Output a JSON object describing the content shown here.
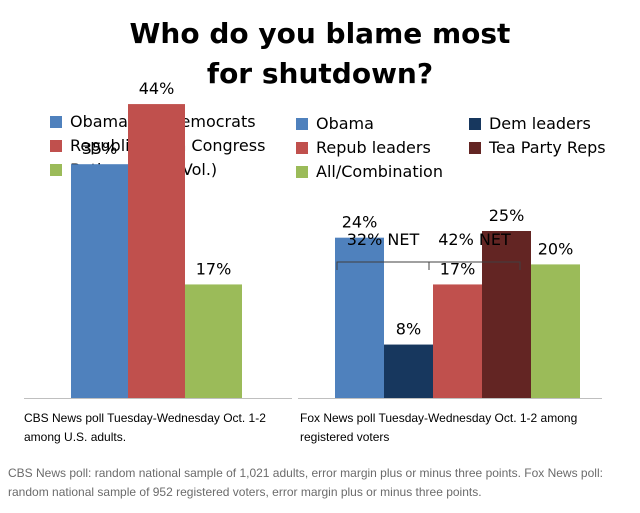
{
  "title": "Who do you blame most for shutdown?",
  "chart_data": [
    {
      "type": "bar",
      "source": "CBS News poll Tuesday-Wednesday Oct. 1-2 among U.S. adults.",
      "categories": [
        "Obama and Democrats",
        "Republicans in Congress",
        "Both equally (Vol.)"
      ],
      "values": [
        35,
        44,
        17
      ],
      "labels": [
        "35%",
        "44%",
        "17%"
      ],
      "colors": [
        "#4f81bd",
        "#c0504d",
        "#9bbb59"
      ],
      "ylim": [
        0,
        50
      ],
      "xlabel": "",
      "ylabel": ""
    },
    {
      "type": "bar",
      "source": "Fox News poll Tuesday-Wednesday Oct. 1-2 among registered voters",
      "categories": [
        "Obama",
        "Dem leaders",
        "Repub leaders",
        "Tea Party Reps",
        "All/Combination"
      ],
      "values": [
        24,
        8,
        17,
        25,
        20
      ],
      "labels": [
        "24%",
        "8%",
        "17%",
        "25%",
        "20%"
      ],
      "colors": [
        "#4f81bd",
        "#17375e",
        "#c0504d",
        "#632523",
        "#9bbb59"
      ],
      "ylim": [
        0,
        50
      ],
      "xlabel": "",
      "ylabel": "",
      "annotations": [
        {
          "text": "32% NET",
          "categories": [
            "Obama",
            "Dem leaders"
          ]
        },
        {
          "text": "42% NET",
          "categories": [
            "Repub leaders",
            "Tea Party Reps"
          ]
        }
      ]
    }
  ],
  "footnote": "CBS News poll: random national sample of 1,021 adults, error margin plus or minus three points. Fox News poll: random national sample of 952 registered voters, error margin plus or minus three points."
}
